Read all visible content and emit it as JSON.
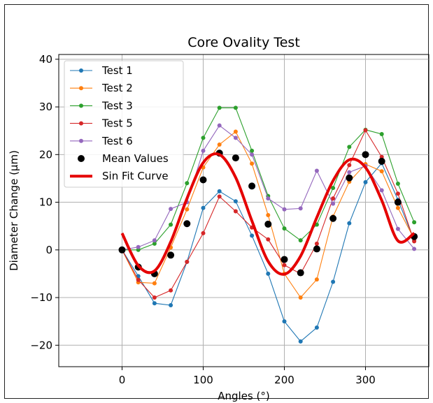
{
  "chart_data": {
    "type": "line",
    "title": "Core Ovality Test",
    "xlabel": "Angles (°)",
    "ylabel": "Diameter Change (µm)",
    "xlim": [
      -78,
      378
    ],
    "ylim": [
      -24.5,
      41
    ],
    "xticks": [
      0,
      100,
      200,
      300
    ],
    "yticks": [
      -20,
      -10,
      0,
      10,
      20,
      30,
      40
    ],
    "grid": true,
    "legend_position": "top-left",
    "x": [
      0,
      20,
      40,
      60,
      80,
      100,
      120,
      140,
      160,
      180,
      200,
      220,
      240,
      260,
      280,
      300,
      320,
      340,
      360
    ],
    "series": [
      {
        "name": "Test 1",
        "color": "#1f77b4",
        "values": [
          0,
          -5.5,
          -11.2,
          -11.6,
          -2.5,
          8.8,
          12.3,
          10.2,
          3.0,
          -5.0,
          -15.0,
          -19.2,
          -16.3,
          -6.7,
          5.6,
          14.2,
          18.2,
          10.5,
          2.0
        ]
      },
      {
        "name": "Test 2",
        "color": "#ff7f0e",
        "values": [
          0,
          -6.8,
          -7.0,
          0.5,
          8.5,
          17.3,
          22.1,
          24.8,
          18.1,
          7.3,
          -5.0,
          -10.0,
          -6.2,
          7.0,
          14.3,
          18.0,
          16.5,
          8.8,
          2.3
        ]
      },
      {
        "name": "Test 3",
        "color": "#2ca02c",
        "values": [
          0,
          0.0,
          1.3,
          5.3,
          14.0,
          23.5,
          29.8,
          29.8,
          20.8,
          11.3,
          4.5,
          2.0,
          5.3,
          13.0,
          21.6,
          25.2,
          24.3,
          13.9,
          5.8
        ]
      },
      {
        "name": "Test 5",
        "color": "#d62728",
        "values": [
          0,
          -6.3,
          -10.0,
          -8.5,
          -2.5,
          3.5,
          11.2,
          8.1,
          4.7,
          2.2,
          -3.2,
          -5.0,
          1.3,
          10.8,
          17.8,
          25.1,
          19.5,
          11.8,
          1.8
        ]
      },
      {
        "name": "Test 6",
        "color": "#9467bd",
        "values": [
          0,
          0.6,
          2.0,
          8.6,
          10.0,
          20.8,
          26.1,
          23.5,
          20.0,
          10.8,
          8.5,
          8.7,
          16.6,
          9.7,
          16.3,
          17.6,
          12.5,
          4.4,
          0.2
        ]
      },
      {
        "name": "Mean Values",
        "color": "#000000",
        "style": "markers",
        "values": [
          0,
          -3.6,
          -5.0,
          -1.1,
          5.5,
          14.7,
          20.3,
          19.3,
          13.4,
          5.4,
          -2.0,
          -4.8,
          0.2,
          6.6,
          15.1,
          20.0,
          18.6,
          10.0,
          2.8
        ]
      },
      {
        "name": "Sin Fit Curve",
        "color": "#e50000",
        "style": "thick-line",
        "values": [
          3.5,
          -3.3,
          -4.4,
          1.7,
          10.8,
          18.3,
          20.0,
          15.2,
          6.1,
          -2.4,
          -5.1,
          -1.3,
          6.8,
          14.5,
          18.9,
          17.3,
          10.4,
          1.9,
          3.5
        ]
      }
    ]
  }
}
